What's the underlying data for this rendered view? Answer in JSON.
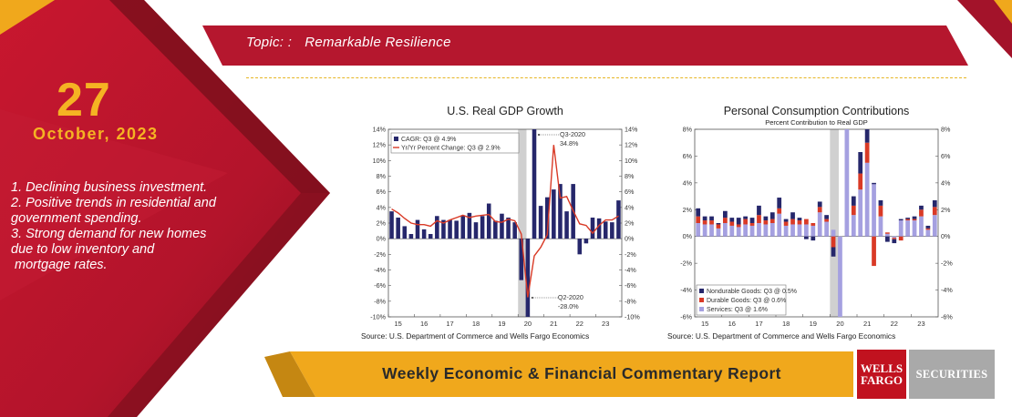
{
  "topic": {
    "label": "Topic: :",
    "value": "Remarkable Resilience"
  },
  "date": {
    "day": "27",
    "month_year": "October, 2023"
  },
  "points": [
    "1. Declining business investment.",
    "2. Positive trends in residential and",
    "government spending.",
    "3. Strong demand for new homes",
    "due to low inventory and",
    " mortgage rates."
  ],
  "report_title": "Weekly Economic & Financial Commentary Report",
  "logos": {
    "wf_line1": "WELLS",
    "wf_line2": "FARGO",
    "securities": "SECURITIES"
  },
  "colors": {
    "crimson": "#b5172e",
    "dark_red": "#7d0f1c",
    "gold": "#f0a81c",
    "navy": "#26276b",
    "red_line": "#d93a26",
    "lavender": "#a5a0e0",
    "durable_red": "#d93a26",
    "recession_gray": "#d0d0d0"
  },
  "chart_data": [
    {
      "type": "bar",
      "title": "U.S. Real GDP Growth",
      "subtitle": "",
      "x_tick_labels": [
        "15",
        "16",
        "17",
        "18",
        "19",
        "20",
        "21",
        "22",
        "23"
      ],
      "x_tick_start_index": [
        0,
        4,
        8,
        12,
        16,
        20,
        24,
        28,
        32
      ],
      "ylim": [
        -10,
        14
      ],
      "y_ticks": [
        -10,
        -8,
        -6,
        -4,
        -2,
        0,
        2,
        4,
        6,
        8,
        10,
        12,
        14
      ],
      "y_tick_labels_left": [
        "-10%",
        "-8%",
        "-6%",
        "-4%",
        "-2%",
        "0%",
        "2%",
        "4%",
        "6%",
        "8%",
        "10%",
        "12%",
        "14%"
      ],
      "y_tick_labels_right": [
        "-10%",
        "-8%",
        "-6%",
        "-4%",
        "-2%",
        "0%",
        "2%",
        "4%",
        "6%",
        "8%",
        "10%",
        "12%",
        "14%"
      ],
      "recession_index": 20,
      "series": [
        {
          "name": "CAGR: Q3 @ 4.9%",
          "kind": "bar",
          "values": [
            3.5,
            2.7,
            1.6,
            0.6,
            2.4,
            1.2,
            0.6,
            2.9,
            2.4,
            2.4,
            2.3,
            3.0,
            3.3,
            2.1,
            2.9,
            4.5,
            2.3,
            3.2,
            2.7,
            2.1,
            -5.3,
            -28.0,
            34.8,
            4.2,
            5.3,
            6.3,
            7.0,
            3.5,
            7.0,
            -2.0,
            -0.6,
            2.7,
            2.6,
            2.2,
            2.1,
            4.9
          ]
        },
        {
          "name": "Yr/Yr Percent Change: Q3 @ 2.9%",
          "kind": "line",
          "values": [
            3.8,
            3.3,
            2.6,
            2.0,
            1.8,
            1.8,
            1.6,
            2.3,
            2.0,
            2.4,
            2.7,
            3.0,
            2.7,
            2.9,
            3.0,
            3.1,
            2.2,
            2.1,
            2.5,
            2.3,
            0.6,
            -7.5,
            -2.2,
            -1.1,
            0.5,
            12.0,
            5.2,
            5.4,
            3.6,
            1.9,
            1.7,
            0.7,
            1.7,
            2.4,
            2.4,
            2.9
          ]
        }
      ],
      "annotations": [
        {
          "text_line1": "Q3-2020",
          "text_line2": "34.8%",
          "index": 22,
          "value": 14.0
        },
        {
          "text_line1": "Q2-2020",
          "text_line2": "-28.0%",
          "index": 21,
          "value": -10.0
        }
      ],
      "legend_position": "top-left",
      "source": "Source: U.S. Department of Commerce and Wells Fargo Economics"
    },
    {
      "type": "bar",
      "stacked": true,
      "title": "Personal Consumption Contributions",
      "subtitle": "Percent Contribution to Real GDP",
      "x_tick_labels": [
        "15",
        "16",
        "17",
        "18",
        "19",
        "20",
        "21",
        "22",
        "23"
      ],
      "x_tick_start_index": [
        0,
        4,
        8,
        12,
        16,
        20,
        24,
        28,
        32
      ],
      "ylim": [
        -6,
        8
      ],
      "y_ticks": [
        -6,
        -4,
        -2,
        0,
        2,
        4,
        6,
        8
      ],
      "y_tick_labels_left": [
        "-6%",
        "-4%",
        "-2%",
        "0%",
        "2%",
        "4%",
        "6%",
        "8%"
      ],
      "y_tick_labels_right": [
        "-6%",
        "-4%",
        "-2%",
        "0%",
        "2%",
        "4%",
        "6%",
        "8%"
      ],
      "recession_index": 20,
      "series": [
        {
          "name": "Services: Q3 @ 1.6%",
          "values": [
            1.0,
            0.9,
            0.9,
            0.6,
            1.0,
            0.8,
            0.7,
            0.9,
            0.8,
            1.0,
            0.9,
            1.0,
            1.7,
            0.8,
            0.9,
            0.9,
            0.9,
            0.8,
            1.8,
            1.1,
            0.5,
            -19.5,
            20.0,
            1.6,
            3.5,
            5.5,
            3.9,
            1.5,
            0.2,
            -0.1,
            1.2,
            1.2,
            1.2,
            1.5,
            0.5,
            1.6
          ]
        },
        {
          "name": "Durable Goods: Q3 @ 0.6%",
          "values": [
            0.5,
            0.3,
            0.3,
            0.3,
            0.4,
            0.3,
            0.2,
            0.4,
            0.2,
            0.6,
            0.3,
            0.3,
            0.4,
            0.3,
            0.4,
            0.3,
            0.4,
            0.2,
            0.4,
            0.2,
            -0.8,
            -1.2,
            3.5,
            0.7,
            1.2,
            1.5,
            -2.2,
            0.8,
            0.1,
            -0.1,
            -0.3,
            0.1,
            0.1,
            0.5,
            0.1,
            0.6
          ]
        },
        {
          "name": "Nondurable Goods: Q3 @ 0.5%",
          "values": [
            0.6,
            0.3,
            0.3,
            0.1,
            0.5,
            0.3,
            0.5,
            0.2,
            0.4,
            0.7,
            0.3,
            0.5,
            0.8,
            0.2,
            0.5,
            0.2,
            -0.2,
            -0.3,
            0.4,
            0.3,
            -0.7,
            -2.6,
            4.2,
            0.7,
            1.6,
            1.3,
            0.1,
            0.4,
            -0.4,
            -0.3,
            0.1,
            0.1,
            0.2,
            0.3,
            0.2,
            0.5
          ]
        }
      ],
      "legend_position": "bottom-left",
      "source": "Source: U.S. Department of Commerce and Wells Fargo Economics"
    }
  ]
}
